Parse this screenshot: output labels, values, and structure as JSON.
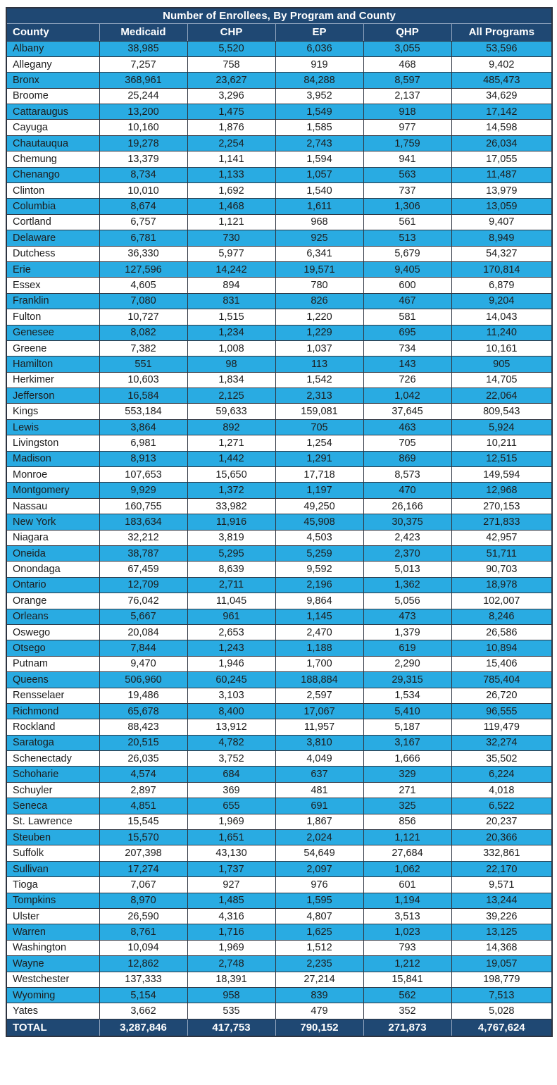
{
  "table": {
    "title": "Number of Enrollees, By Program and County",
    "columns": [
      "County",
      "Medicaid",
      "CHP",
      "EP",
      "QHP",
      "All Programs"
    ],
    "rows": [
      [
        "Albany",
        "38,985",
        "5,520",
        "6,036",
        "3,055",
        "53,596"
      ],
      [
        "Allegany",
        "7,257",
        "758",
        "919",
        "468",
        "9,402"
      ],
      [
        "Bronx",
        "368,961",
        "23,627",
        "84,288",
        "8,597",
        "485,473"
      ],
      [
        "Broome",
        "25,244",
        "3,296",
        "3,952",
        "2,137",
        "34,629"
      ],
      [
        "Cattaraugus",
        "13,200",
        "1,475",
        "1,549",
        "918",
        "17,142"
      ],
      [
        "Cayuga",
        "10,160",
        "1,876",
        "1,585",
        "977",
        "14,598"
      ],
      [
        "Chautauqua",
        "19,278",
        "2,254",
        "2,743",
        "1,759",
        "26,034"
      ],
      [
        "Chemung",
        "13,379",
        "1,141",
        "1,594",
        "941",
        "17,055"
      ],
      [
        "Chenango",
        "8,734",
        "1,133",
        "1,057",
        "563",
        "11,487"
      ],
      [
        "Clinton",
        "10,010",
        "1,692",
        "1,540",
        "737",
        "13,979"
      ],
      [
        "Columbia",
        "8,674",
        "1,468",
        "1,611",
        "1,306",
        "13,059"
      ],
      [
        "Cortland",
        "6,757",
        "1,121",
        "968",
        "561",
        "9,407"
      ],
      [
        "Delaware",
        "6,781",
        "730",
        "925",
        "513",
        "8,949"
      ],
      [
        "Dutchess",
        "36,330",
        "5,977",
        "6,341",
        "5,679",
        "54,327"
      ],
      [
        "Erie",
        "127,596",
        "14,242",
        "19,571",
        "9,405",
        "170,814"
      ],
      [
        "Essex",
        "4,605",
        "894",
        "780",
        "600",
        "6,879"
      ],
      [
        "Franklin",
        "7,080",
        "831",
        "826",
        "467",
        "9,204"
      ],
      [
        "Fulton",
        "10,727",
        "1,515",
        "1,220",
        "581",
        "14,043"
      ],
      [
        "Genesee",
        "8,082",
        "1,234",
        "1,229",
        "695",
        "11,240"
      ],
      [
        "Greene",
        "7,382",
        "1,008",
        "1,037",
        "734",
        "10,161"
      ],
      [
        "Hamilton",
        "551",
        "98",
        "113",
        "143",
        "905"
      ],
      [
        "Herkimer",
        "10,603",
        "1,834",
        "1,542",
        "726",
        "14,705"
      ],
      [
        "Jefferson",
        "16,584",
        "2,125",
        "2,313",
        "1,042",
        "22,064"
      ],
      [
        "Kings",
        "553,184",
        "59,633",
        "159,081",
        "37,645",
        "809,543"
      ],
      [
        "Lewis",
        "3,864",
        "892",
        "705",
        "463",
        "5,924"
      ],
      [
        "Livingston",
        "6,981",
        "1,271",
        "1,254",
        "705",
        "10,211"
      ],
      [
        "Madison",
        "8,913",
        "1,442",
        "1,291",
        "869",
        "12,515"
      ],
      [
        "Monroe",
        "107,653",
        "15,650",
        "17,718",
        "8,573",
        "149,594"
      ],
      [
        "Montgomery",
        "9,929",
        "1,372",
        "1,197",
        "470",
        "12,968"
      ],
      [
        "Nassau",
        "160,755",
        "33,982",
        "49,250",
        "26,166",
        "270,153"
      ],
      [
        "New York",
        "183,634",
        "11,916",
        "45,908",
        "30,375",
        "271,833"
      ],
      [
        "Niagara",
        "32,212",
        "3,819",
        "4,503",
        "2,423",
        "42,957"
      ],
      [
        "Oneida",
        "38,787",
        "5,295",
        "5,259",
        "2,370",
        "51,711"
      ],
      [
        "Onondaga",
        "67,459",
        "8,639",
        "9,592",
        "5,013",
        "90,703"
      ],
      [
        "Ontario",
        "12,709",
        "2,711",
        "2,196",
        "1,362",
        "18,978"
      ],
      [
        "Orange",
        "76,042",
        "11,045",
        "9,864",
        "5,056",
        "102,007"
      ],
      [
        "Orleans",
        "5,667",
        "961",
        "1,145",
        "473",
        "8,246"
      ],
      [
        "Oswego",
        "20,084",
        "2,653",
        "2,470",
        "1,379",
        "26,586"
      ],
      [
        "Otsego",
        "7,844",
        "1,243",
        "1,188",
        "619",
        "10,894"
      ],
      [
        "Putnam",
        "9,470",
        "1,946",
        "1,700",
        "2,290",
        "15,406"
      ],
      [
        "Queens",
        "506,960",
        "60,245",
        "188,884",
        "29,315",
        "785,404"
      ],
      [
        "Rensselaer",
        "19,486",
        "3,103",
        "2,597",
        "1,534",
        "26,720"
      ],
      [
        "Richmond",
        "65,678",
        "8,400",
        "17,067",
        "5,410",
        "96,555"
      ],
      [
        "Rockland",
        "88,423",
        "13,912",
        "11,957",
        "5,187",
        "119,479"
      ],
      [
        "Saratoga",
        "20,515",
        "4,782",
        "3,810",
        "3,167",
        "32,274"
      ],
      [
        "Schenectady",
        "26,035",
        "3,752",
        "4,049",
        "1,666",
        "35,502"
      ],
      [
        "Schoharie",
        "4,574",
        "684",
        "637",
        "329",
        "6,224"
      ],
      [
        "Schuyler",
        "2,897",
        "369",
        "481",
        "271",
        "4,018"
      ],
      [
        "Seneca",
        "4,851",
        "655",
        "691",
        "325",
        "6,522"
      ],
      [
        "St. Lawrence",
        "15,545",
        "1,969",
        "1,867",
        "856",
        "20,237"
      ],
      [
        "Steuben",
        "15,570",
        "1,651",
        "2,024",
        "1,121",
        "20,366"
      ],
      [
        "Suffolk",
        "207,398",
        "43,130",
        "54,649",
        "27,684",
        "332,861"
      ],
      [
        "Sullivan",
        "17,274",
        "1,737",
        "2,097",
        "1,062",
        "22,170"
      ],
      [
        "Tioga",
        "7,067",
        "927",
        "976",
        "601",
        "9,571"
      ],
      [
        "Tompkins",
        "8,970",
        "1,485",
        "1,595",
        "1,194",
        "13,244"
      ],
      [
        "Ulster",
        "26,590",
        "4,316",
        "4,807",
        "3,513",
        "39,226"
      ],
      [
        "Warren",
        "8,761",
        "1,716",
        "1,625",
        "1,023",
        "13,125"
      ],
      [
        "Washington",
        "10,094",
        "1,969",
        "1,512",
        "793",
        "14,368"
      ],
      [
        "Wayne",
        "12,862",
        "2,748",
        "2,235",
        "1,212",
        "19,057"
      ],
      [
        "Westchester",
        "137,333",
        "18,391",
        "27,214",
        "15,841",
        "198,779"
      ],
      [
        "Wyoming",
        "5,154",
        "958",
        "839",
        "562",
        "7,513"
      ],
      [
        "Yates",
        "3,662",
        "535",
        "479",
        "352",
        "5,028"
      ]
    ],
    "total_row": [
      "TOTAL",
      "3,287,846",
      "417,753",
      "790,152",
      "271,873",
      "4,767,624"
    ],
    "colors": {
      "header_bg": "#1f4873",
      "alt_row_bg": "#29abe2",
      "row_bg": "#ffffff",
      "header_text": "#ffffff",
      "body_text": "#1c1c1c"
    }
  }
}
